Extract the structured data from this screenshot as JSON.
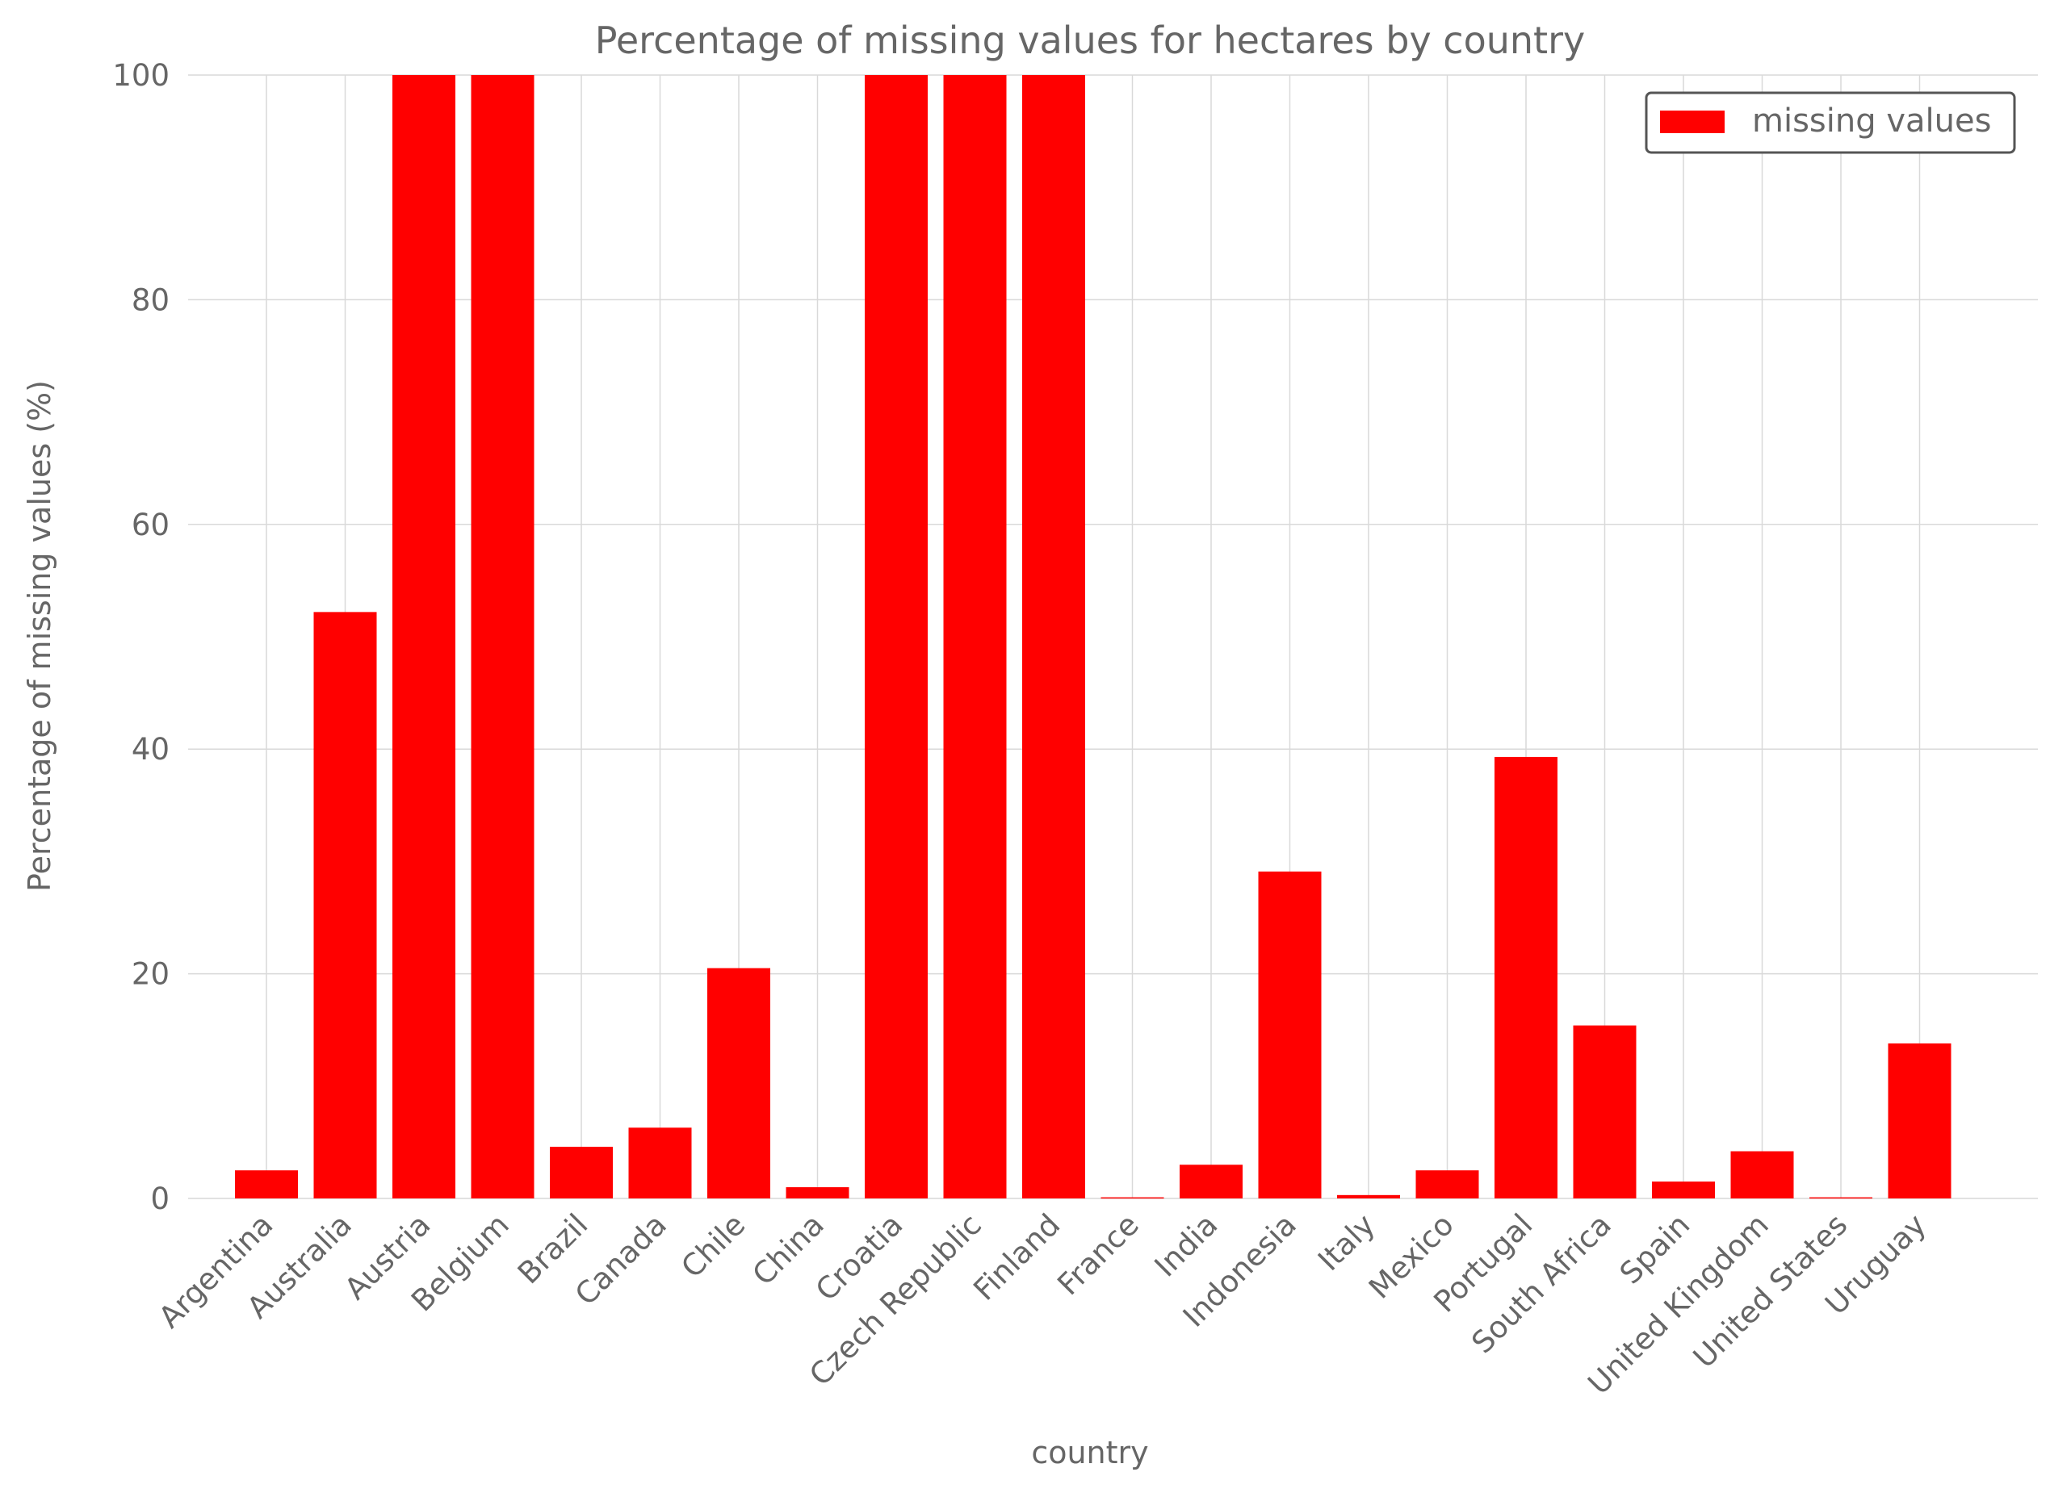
{
  "chart_data": {
    "type": "bar",
    "title": "Percentage of missing values for hectares by country",
    "xlabel": "country",
    "ylabel": "Percentage of missing values (%)",
    "ylim": [
      0,
      100
    ],
    "yticks": [
      0,
      20,
      40,
      60,
      80,
      100
    ],
    "grid": true,
    "legend_position": "top-right",
    "bar_color": "#ff0000",
    "categories": [
      "Argentina",
      "Australia",
      "Austria",
      "Belgium",
      "Brazil",
      "Canada",
      "Chile",
      "China",
      "Croatia",
      "Czech Republic",
      "Finland",
      "France",
      "India",
      "Indonesia",
      "Italy",
      "Mexico",
      "Portugal",
      "South Africa",
      "Spain",
      "United Kingdom",
      "United States",
      "Uruguay"
    ],
    "series": [
      {
        "name": "missing values",
        "values": [
          2.5,
          52.2,
          100,
          100,
          4.6,
          6.3,
          20.5,
          1.0,
          100,
          100,
          100,
          0.1,
          3.0,
          29.1,
          0.3,
          2.5,
          39.3,
          15.4,
          1.5,
          4.2,
          0.1,
          13.8
        ]
      }
    ]
  }
}
